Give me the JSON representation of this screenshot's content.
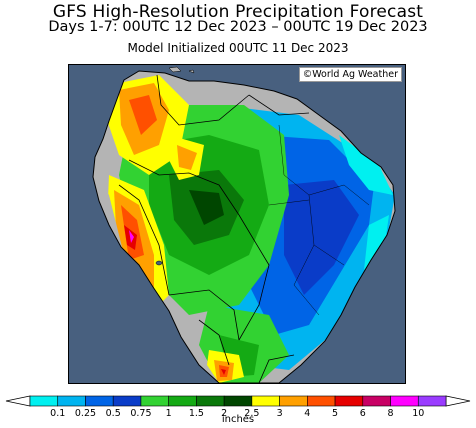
{
  "header": {
    "title": "GFS High-Resolution Precipitation Forecast",
    "period": "Days 1-7: 00UTC 12 Dec 2023 – 00UTC 19 Dec 2023",
    "initialized": "Model Initialized 00UTC 11 Dec 2023"
  },
  "map": {
    "credit": "©World Ag Weather",
    "ocean_color": "#48607f",
    "land_dry_color": "#b4b4b4",
    "boundary_color": "#000000"
  },
  "legend": {
    "units": "inches",
    "colors": [
      "#00f0f0",
      "#00b4f0",
      "#0064e6",
      "#0a3cc8",
      "#32d232",
      "#14aa14",
      "#0a780a",
      "#004600",
      "#ffff00",
      "#ffa000",
      "#ff5000",
      "#e60000",
      "#c80064",
      "#ff00ff",
      "#9a3cff"
    ],
    "ticks": [
      "0.1",
      "0.25",
      "0.5",
      "0.75",
      "1",
      "1.5",
      "2",
      "2.5",
      "3",
      "4",
      "5",
      "6",
      "8",
      "10"
    ]
  }
}
